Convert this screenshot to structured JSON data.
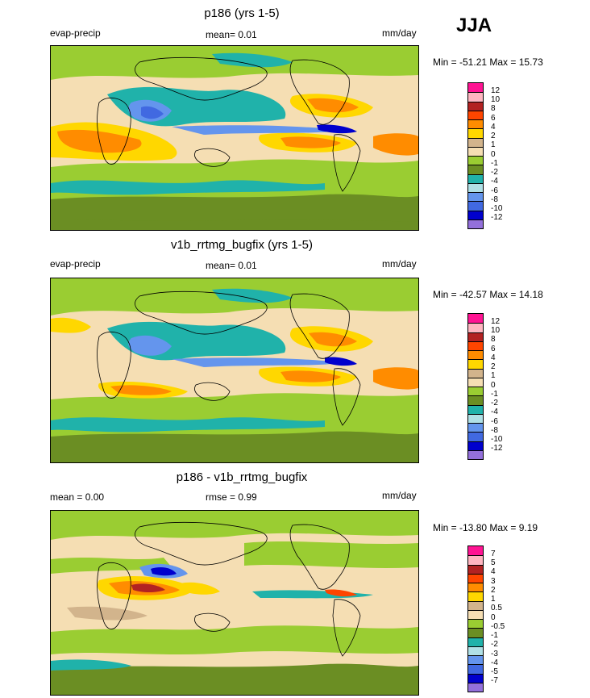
{
  "season": "JJA",
  "panels": [
    {
      "title": "p186 (yrs 1-5)",
      "left_label": "evap-precip",
      "center_label": "mean=   0.01",
      "right_label": "mm/day",
      "minmax": "Min = -51.21 Max =  15.73",
      "levels": [
        "12",
        "10",
        "8",
        "6",
        "4",
        "2",
        "1",
        "0",
        "-1",
        "-2",
        "-4",
        "-6",
        "-8",
        "-10",
        "-12"
      ]
    },
    {
      "title": "v1b_rrtmg_bugfix (yrs 1-5)",
      "left_label": "evap-precip",
      "center_label": "mean=   0.01",
      "right_label": "mm/day",
      "minmax": "Min = -42.57 Max =  14.18",
      "levels": [
        "12",
        "10",
        "8",
        "6",
        "4",
        "2",
        "1",
        "0",
        "-1",
        "-2",
        "-4",
        "-6",
        "-8",
        "-10",
        "-12"
      ]
    },
    {
      "title": "p186 - v1b_rrtmg_bugfix",
      "left_label": "mean =    0.00",
      "center_label": "rmse =   0.99",
      "right_label": "mm/day",
      "minmax": "Min = -13.80 Max =   9.19",
      "levels": [
        "7",
        "5",
        "4",
        "3",
        "2",
        "1",
        "0.5",
        "0",
        "-0.5",
        "-1",
        "-2",
        "-3",
        "-4",
        "-5",
        "-7"
      ]
    }
  ],
  "colors": {
    "scale": [
      "#ff1493",
      "#ffb6c1",
      "#b22222",
      "#ff4500",
      "#ff8c00",
      "#ffd700",
      "#d2b48c",
      "#f5deb3",
      "#9acd32",
      "#6b8e23",
      "#20b2aa",
      "#b0e0e6",
      "#6495ed",
      "#4169e1",
      "#0000cd",
      "#9370db"
    ]
  }
}
